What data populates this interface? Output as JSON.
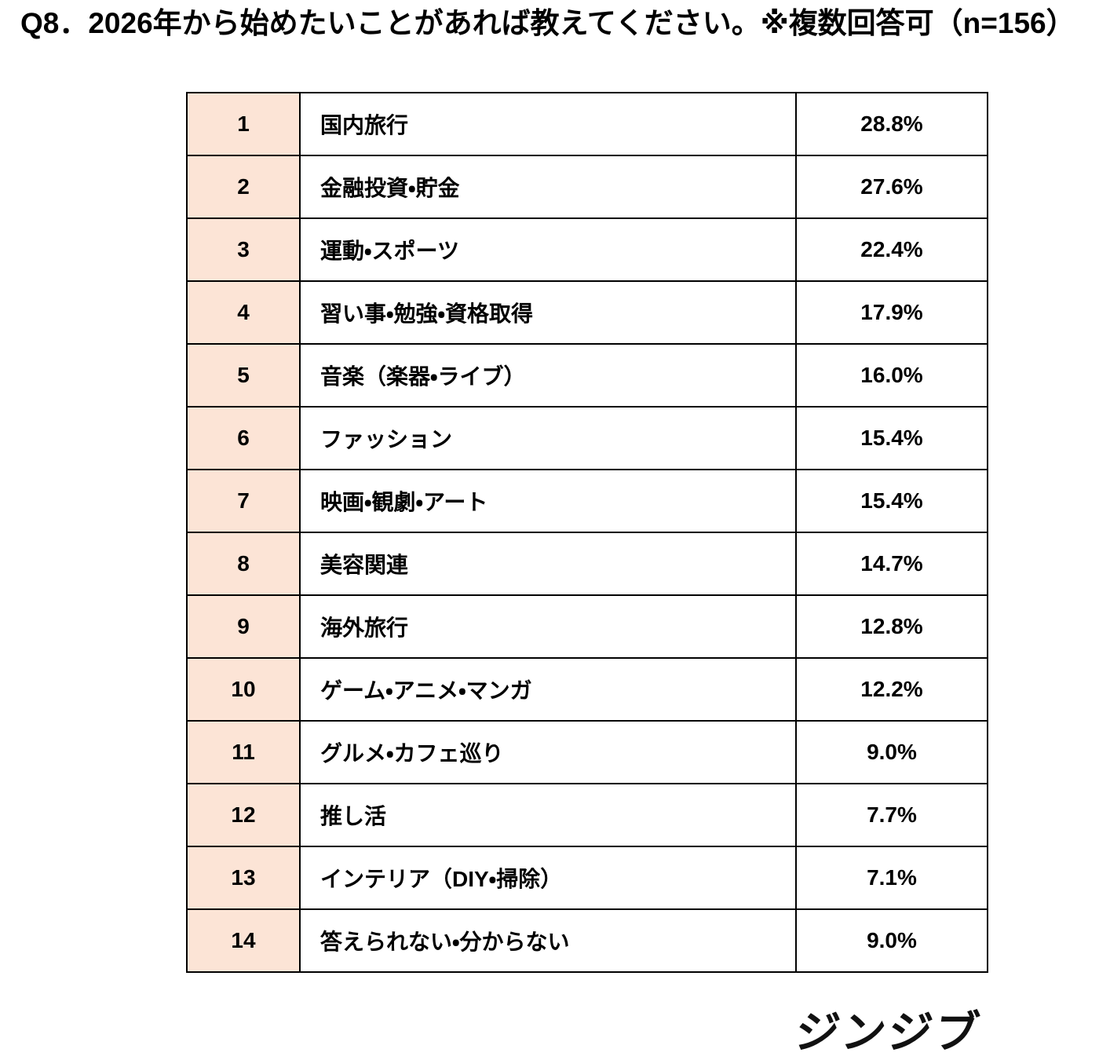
{
  "title": "Q8．2026年から始めたいことがあれば教えてください。※複数回答可（n=156）",
  "logo": {
    "text": "ジンジブ"
  },
  "colors": {
    "rank_cell_bg": "#fce4d6",
    "border": "#000000",
    "text": "#000000",
    "background": "#ffffff"
  },
  "table": {
    "rows": [
      {
        "rank": "1",
        "label": "国内旅行",
        "value": "28.8%"
      },
      {
        "rank": "2",
        "label": "金融投資・貯金",
        "value": "27.6%"
      },
      {
        "rank": "3",
        "label": "運動・スポーツ",
        "value": "22.4%"
      },
      {
        "rank": "4",
        "label": "習い事・勉強・資格取得",
        "value": "17.9%"
      },
      {
        "rank": "5",
        "label": "音楽（楽器・ライブ）",
        "value": "16.0%"
      },
      {
        "rank": "6",
        "label": "ファッション",
        "value": "15.4%"
      },
      {
        "rank": "7",
        "label": "映画・観劇・アート",
        "value": "15.4%"
      },
      {
        "rank": "8",
        "label": "美容関連",
        "value": "14.7%"
      },
      {
        "rank": "9",
        "label": "海外旅行",
        "value": "12.8%"
      },
      {
        "rank": "10",
        "label": "ゲーム・アニメ・マンガ",
        "value": "12.2%"
      },
      {
        "rank": "11",
        "label": "グルメ・カフェ巡り",
        "value": "9.0%"
      },
      {
        "rank": "12",
        "label": "推し活",
        "value": "7.7%"
      },
      {
        "rank": "13",
        "label": "インテリア（DIY・掃除）",
        "value": "7.1%"
      },
      {
        "rank": "14",
        "label": "答えられない・分からない",
        "value": "9.0%"
      }
    ]
  },
  "chart_data": {
    "type": "table",
    "title": "Q8．2026年から始めたいことがあれば教えてください。※複数回答可（n=156）",
    "n": 156,
    "note": "※複数回答可",
    "unit": "%",
    "categories": [
      "国内旅行",
      "金融投資・貯金",
      "運動・スポーツ",
      "習い事・勉強・資格取得",
      "音楽（楽器・ライブ）",
      "ファッション",
      "映画・観劇・アート",
      "美容関連",
      "海外旅行",
      "ゲーム・アニメ・マンガ",
      "グルメ・カフェ巡り",
      "推し活",
      "インテリア（DIY・掃除）",
      "答えられない・分からない"
    ],
    "values": [
      28.8,
      27.6,
      22.4,
      17.9,
      16.0,
      15.4,
      15.4,
      14.7,
      12.8,
      12.2,
      9.0,
      7.7,
      7.1,
      9.0
    ]
  }
}
